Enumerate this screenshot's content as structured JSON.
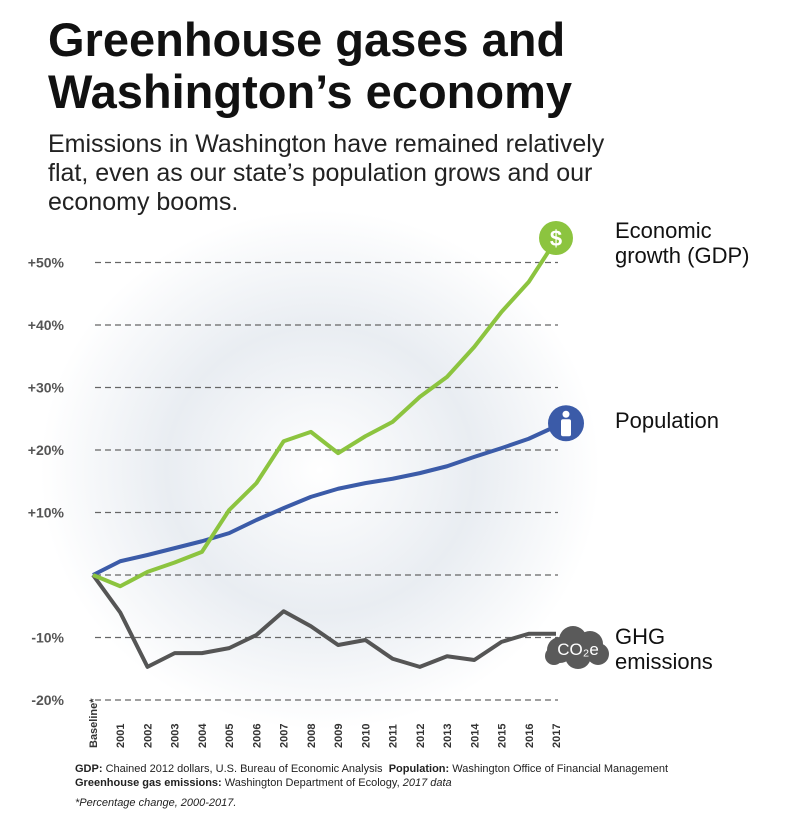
{
  "chart_data": {
    "type": "line",
    "title": "Greenhouse gases and Washington’s economy",
    "subtitle": "Emissions in Washington have remained relatively flat, even as our state’s population grows and our economy booms.",
    "categories": [
      "Baseline*",
      "2001",
      "2002",
      "2003",
      "2004",
      "2005",
      "2006",
      "2007",
      "2008",
      "2009",
      "2010",
      "2011",
      "2012",
      "2013",
      "2014",
      "2015",
      "2016",
      "2017"
    ],
    "series": [
      {
        "name": "Economic growth (GDP)",
        "color": "#8cc43f",
        "icon": "$",
        "values": [
          0,
          -1.8,
          0.5,
          2,
          3.7,
          10.4,
          14.7,
          21.4,
          22.9,
          19.5,
          22.2,
          24.5,
          28.5,
          31.7,
          36.5,
          42.1,
          46.9,
          53.6
        ]
      },
      {
        "name": "Population",
        "color": "#3b5ba8",
        "values": [
          0,
          2.2,
          3.2,
          4.3,
          5.4,
          6.7,
          8.8,
          10.7,
          12.5,
          13.8,
          14.7,
          15.4,
          16.3,
          17.4,
          18.9,
          20.3,
          21.8,
          23.8
        ]
      },
      {
        "name": "GHG emissions",
        "color": "#555555",
        "icon": "CO₂e",
        "values": [
          0,
          -6,
          -14.7,
          -12.5,
          -12.5,
          -11.7,
          -9.6,
          -5.8,
          -8.2,
          -11.2,
          -10.4,
          -13.4,
          -14.7,
          -13,
          -13.6,
          -10.7,
          -9.4,
          -9.4
        ]
      }
    ],
    "ylim": [
      -21,
      55
    ],
    "yticks": [
      {
        "value": -20,
        "label": "-20%"
      },
      {
        "value": -10,
        "label": "-10%"
      },
      {
        "value": 0,
        "label": null
      },
      {
        "value": 10,
        "label": "+10%"
      },
      {
        "value": 20,
        "label": "+20%"
      },
      {
        "value": 30,
        "label": "+30%"
      },
      {
        "value": 40,
        "label": "+40%"
      },
      {
        "value": 50,
        "label": "+50%"
      }
    ],
    "grid": true,
    "sources": [
      {
        "label": "GDP:",
        "text": "Chained 2012 dollars, U.S. Bureau of Economic Analysis"
      },
      {
        "label": "Population:",
        "text": "Washington Office of Financial Management"
      },
      {
        "label": "Greenhouse gas emissions:",
        "text": "Washington Department of Ecology,",
        "note": "2017 data"
      }
    ],
    "footnote": "*Percentage change, 2000-2017."
  }
}
